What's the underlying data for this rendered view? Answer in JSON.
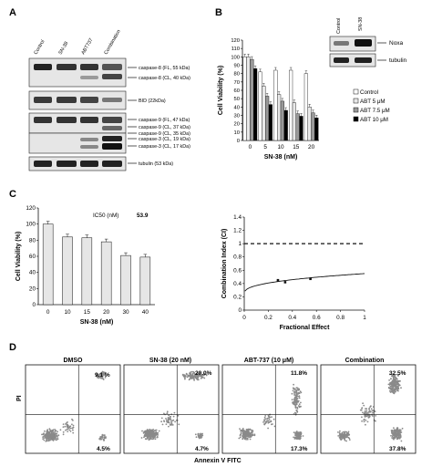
{
  "panels": {
    "a": "A",
    "b": "B",
    "c": "C",
    "d": "D"
  },
  "panel_a": {
    "lanes": [
      "Control",
      "SN-38",
      "ABT737",
      "Combination"
    ],
    "bands": [
      "caspase-8 (FL, 55 kDa)",
      "caspase-8 (CL, 40 kDa)",
      "BID (22kDa)",
      "caspase-9 (FL, 47 kDa)",
      "caspase-9 (CL, 37 kDa)",
      "caspase-9 (CL, 35 kDa)",
      "caspase-3 (CL, 19 kDa)",
      "caspase-3 (CL, 17 kDa)",
      "tubulin (53 kDa)"
    ]
  },
  "panel_b_blot": {
    "lanes": [
      "Control",
      "SN-38"
    ],
    "bands": [
      "Noxa",
      "tubulin"
    ]
  },
  "panel_d": {
    "ylabel": "PI",
    "xlabel": "Annexin V FITC",
    "plots": [
      {
        "title": "DMSO",
        "ur": "9.1 %",
        "lr": "4.5%"
      },
      {
        "title": "SN-38 (20 nM)",
        "ur": "20.0%",
        "lr": "4.7%"
      },
      {
        "title": "ABT-737 (10 μM)",
        "ur": "11.8%",
        "lr": "17.3%"
      },
      {
        "title": "Combination",
        "ur": "32.5%",
        "lr": "37.8%"
      }
    ]
  },
  "chart_data": [
    {
      "type": "bar",
      "ylabel": "Cell Viability (%)",
      "xlabel": "SN-38 (nM)",
      "categories": [
        "0",
        "5",
        "10",
        "15",
        "20"
      ],
      "ylim": [
        0,
        120
      ],
      "yticks": [
        0,
        10,
        20,
        30,
        40,
        50,
        60,
        70,
        80,
        90,
        100,
        110,
        120
      ],
      "legend_position": "right",
      "series": [
        {
          "name": "Control",
          "color": "#ffffff",
          "values": [
            100,
            82,
            84,
            84,
            80
          ]
        },
        {
          "name": "ABT 5 μM",
          "color": "#e8e8e8",
          "values": [
            100,
            65,
            55,
            45,
            40
          ]
        },
        {
          "name": "ABT 7.5 μM",
          "color": "#999999",
          "values": [
            97,
            53,
            47,
            32,
            33
          ]
        },
        {
          "name": "ABT 10 μM",
          "color": "#000000",
          "values": [
            86,
            43,
            36,
            29,
            27
          ]
        }
      ]
    },
    {
      "type": "bar",
      "ylabel": "Cell Viability (%)",
      "xlabel": "SN-38 (nM)",
      "categories": [
        "0",
        "10",
        "15",
        "20",
        "30",
        "40"
      ],
      "values": [
        100,
        84,
        83,
        78,
        61,
        59
      ],
      "ylim": [
        0,
        120
      ],
      "yticks": [
        0,
        20,
        40,
        60,
        80,
        100,
        120
      ],
      "annotation_label": "IC50 (nM)",
      "annotation_value": "53.9"
    },
    {
      "type": "line",
      "ylabel": "Combination Index (CI)",
      "xlabel": "Fractional Effect",
      "xlim": [
        0,
        1
      ],
      "ylim": [
        0,
        1.4
      ],
      "xticks": [
        "0",
        "0.2",
        "0.4",
        "0.6",
        "0.8",
        "1"
      ],
      "yticks": [
        "0",
        "0.2",
        "0.4",
        "0.6",
        "0.8",
        "1",
        "1.2",
        "1.4"
      ],
      "reference_line": 1,
      "points": [
        [
          0.28,
          0.45
        ],
        [
          0.34,
          0.42
        ],
        [
          0.55,
          0.47
        ]
      ]
    }
  ]
}
